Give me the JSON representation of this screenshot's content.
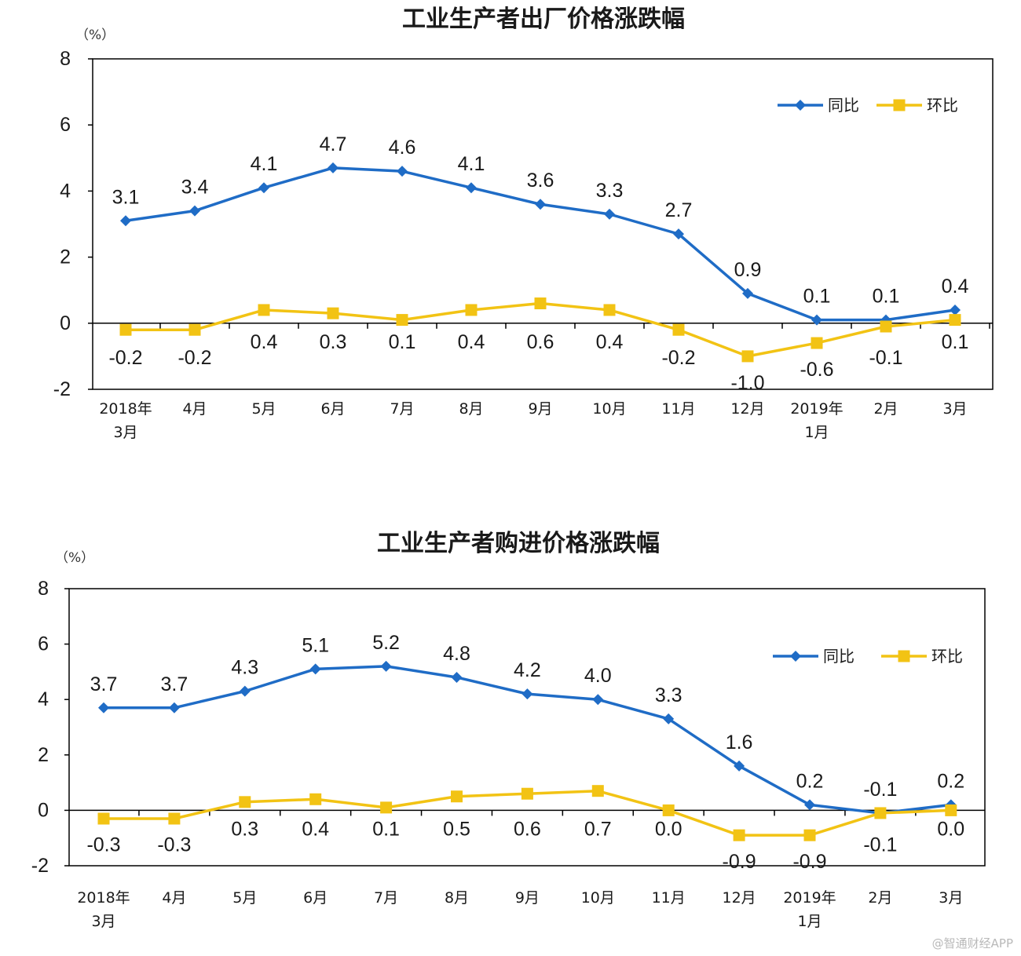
{
  "colors": {
    "yoy": "#1f6cc6",
    "mom": "#f2c314",
    "axis": "#000000"
  },
  "watermark": "@智通财经APP",
  "chart_data": [
    {
      "type": "line",
      "title": "工业生产者出厂价格涨跌幅",
      "unit_label": "（%）",
      "ylim": [
        -2,
        8
      ],
      "yticks": [
        "8",
        "6",
        "4",
        "2",
        "0",
        "-2"
      ],
      "categories": [
        [
          "2018年",
          "3月"
        ],
        [
          "4月"
        ],
        [
          "5月"
        ],
        [
          "6月"
        ],
        [
          "7月"
        ],
        [
          "8月"
        ],
        [
          "9月"
        ],
        [
          "10月"
        ],
        [
          "11月"
        ],
        [
          "12月"
        ],
        [
          "2019年",
          "1月"
        ],
        [
          "2月"
        ],
        [
          "3月"
        ]
      ],
      "legend_position": "top-right",
      "series": [
        {
          "name": "同比",
          "marker": "diamond",
          "color": "#1f6cc6",
          "values": [
            3.1,
            3.4,
            4.1,
            4.7,
            4.6,
            4.1,
            3.6,
            3.3,
            2.7,
            0.9,
            0.1,
            0.1,
            0.4
          ],
          "labels": [
            "3.1",
            "3.4",
            "4.1",
            "4.7",
            "4.6",
            "4.1",
            "3.6",
            "3.3",
            "2.7",
            "0.9",
            "0.1",
            "0.1",
            "0.4"
          ]
        },
        {
          "name": "环比",
          "marker": "square",
          "color": "#f2c314",
          "values": [
            -0.2,
            -0.2,
            0.4,
            0.3,
            0.1,
            0.4,
            0.6,
            0.4,
            -0.2,
            -1.0,
            -0.6,
            -0.1,
            0.1
          ],
          "labels": [
            "-0.2",
            "-0.2",
            "0.4",
            "0.3",
            "0.1",
            "0.4",
            "0.6",
            "0.4",
            "-0.2",
            "-1.0",
            "-0.6",
            "-0.1",
            "0.1"
          ]
        }
      ]
    },
    {
      "type": "line",
      "title": "工业生产者购进价格涨跌幅",
      "unit_label": "（%）",
      "ylim": [
        -2,
        8
      ],
      "yticks": [
        "8",
        "6",
        "4",
        "2",
        "0",
        "-2"
      ],
      "categories": [
        [
          "2018年",
          "3月"
        ],
        [
          "4月"
        ],
        [
          "5月"
        ],
        [
          "6月"
        ],
        [
          "7月"
        ],
        [
          "8月"
        ],
        [
          "9月"
        ],
        [
          "10月"
        ],
        [
          "11月"
        ],
        [
          "12月"
        ],
        [
          "2019年",
          "1月"
        ],
        [
          "2月"
        ],
        [
          "3月"
        ]
      ],
      "legend_position": "top-right",
      "series": [
        {
          "name": "同比",
          "marker": "diamond",
          "color": "#1f6cc6",
          "values": [
            3.7,
            3.7,
            4.3,
            5.1,
            5.2,
            4.8,
            4.2,
            4.0,
            3.3,
            1.6,
            0.2,
            -0.1,
            0.2
          ],
          "labels": [
            "3.7",
            "3.7",
            "4.3",
            "5.1",
            "5.2",
            "4.8",
            "4.2",
            "4.0",
            "3.3",
            "1.6",
            "0.2",
            "-0.1",
            "0.2"
          ]
        },
        {
          "name": "环比",
          "marker": "square",
          "color": "#f2c314",
          "values": [
            -0.3,
            -0.3,
            0.3,
            0.4,
            0.1,
            0.5,
            0.6,
            0.7,
            0.0,
            -0.9,
            -0.9,
            -0.1,
            0.0
          ],
          "labels": [
            "-0.3",
            "-0.3",
            "0.3",
            "0.4",
            "0.1",
            "0.5",
            "0.6",
            "0.7",
            "0.0",
            "-0.9",
            "-0.9",
            "-0.1",
            "0.0"
          ]
        }
      ]
    }
  ]
}
